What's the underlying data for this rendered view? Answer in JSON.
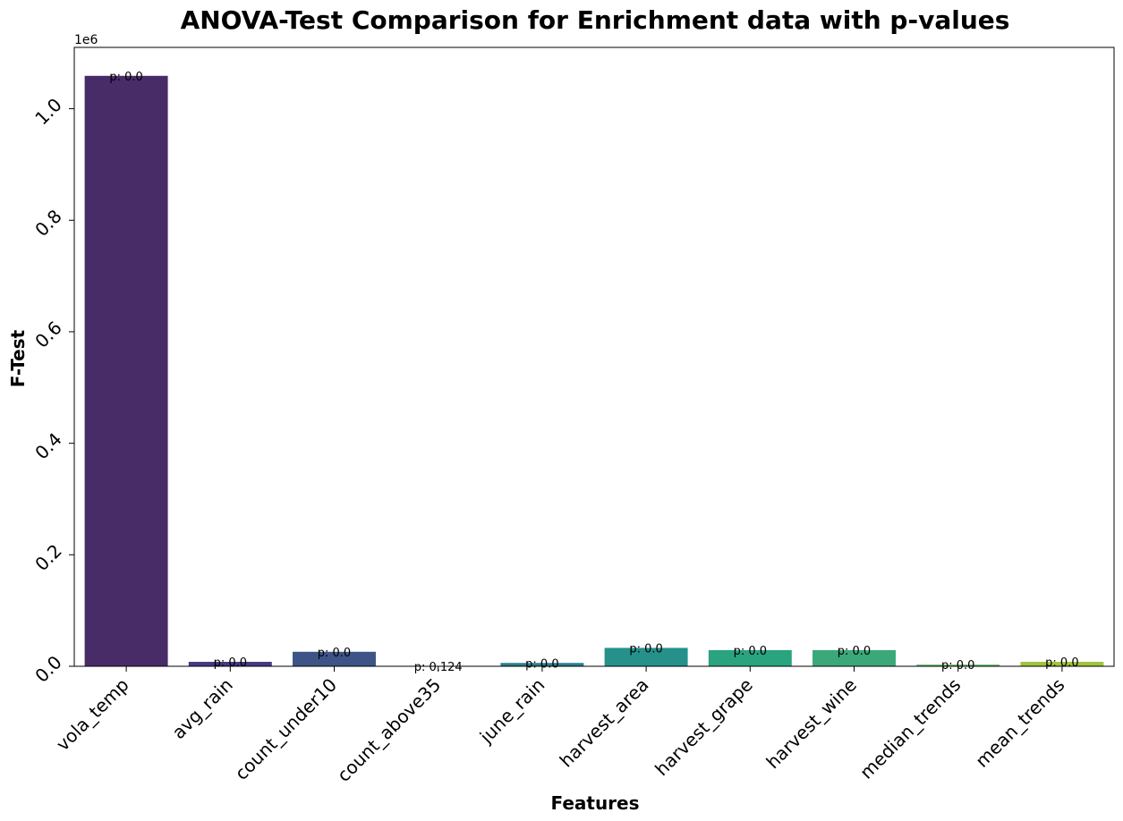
{
  "chart_data": {
    "type": "bar",
    "title": "ANOVA-Test Comparison for Enrichment data with p-values",
    "xlabel": "Features",
    "ylabel": "F-Test",
    "y_offset_label": "1e6",
    "ylim": [
      0,
      1.11
    ],
    "yticks": [
      0.0,
      0.2,
      0.4,
      0.6,
      0.8,
      1.0
    ],
    "ytick_labels": [
      "0.0",
      "0.2",
      "0.4",
      "0.6",
      "0.8",
      "1.0"
    ],
    "grid": false,
    "categories": [
      "vola_temp",
      "avg_rain",
      "count_under10",
      "count_above35",
      "june_rain",
      "harvest_area",
      "harvest_grape",
      "harvest_wine",
      "median_trends",
      "mean_trends"
    ],
    "values": [
      1.059,
      0.008,
      0.026,
      0.0002,
      0.006,
      0.033,
      0.029,
      0.029,
      0.003,
      0.008
    ],
    "value_unit_multiplier": "1e6",
    "bar_labels": [
      "p: 0.0",
      "p: 0.0",
      "p: 0.0",
      "p: 0.124",
      "p: 0.0",
      "p: 0.0",
      "p: 0.0",
      "p: 0.0",
      "p: 0.0",
      "p: 0.0"
    ],
    "colors": [
      "#482c67",
      "#443a83",
      "#3e5486",
      "#34698d",
      "#2b7f8e",
      "#25918a",
      "#2aa37f",
      "#3ba87a",
      "#65b66a",
      "#a0c43d"
    ]
  }
}
